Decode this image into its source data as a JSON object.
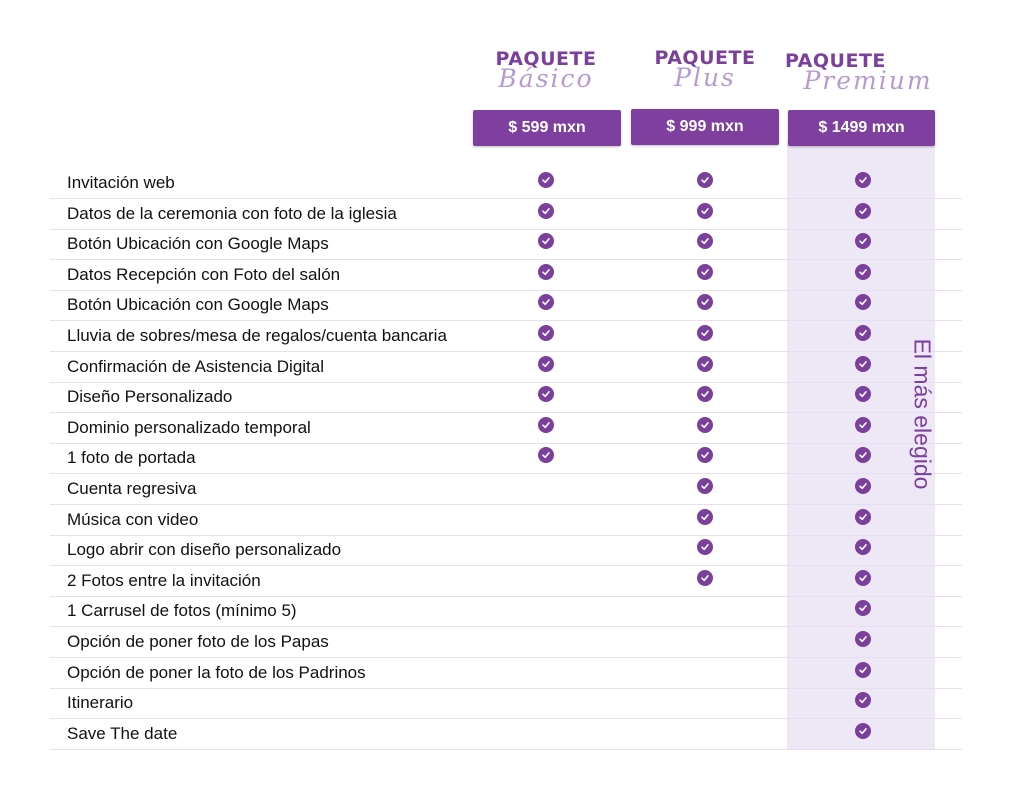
{
  "packages": [
    {
      "id": "basico",
      "title": "PAQUETE",
      "script": "Básico",
      "price": "$ 599 mxn"
    },
    {
      "id": "plus",
      "title": "PAQUETE",
      "script": "Plus",
      "price": "$ 999 mxn"
    },
    {
      "id": "premium",
      "title": "PAQUETE",
      "script": "Premium",
      "price": "$ 1499 mxn"
    }
  ],
  "badge": "El más elegido",
  "colors": {
    "accent": "#7b3f9c",
    "highlight": "#eee8f6",
    "divider": "#e6dff2"
  },
  "check_icon": "check-circle-icon",
  "features": [
    {
      "label": "Invitación web",
      "included": [
        true,
        true,
        true
      ]
    },
    {
      "label": "Datos de la ceremonia con foto de la iglesia",
      "included": [
        true,
        true,
        true
      ]
    },
    {
      "label": "Botón Ubicación con Google Maps",
      "included": [
        true,
        true,
        true
      ]
    },
    {
      "label": "Datos Recepción con Foto del salón",
      "included": [
        true,
        true,
        true
      ]
    },
    {
      "label": "Botón Ubicación con Google Maps",
      "included": [
        true,
        true,
        true
      ]
    },
    {
      "label": "Lluvia de sobres/mesa de regalos/cuenta bancaria",
      "included": [
        true,
        true,
        true
      ]
    },
    {
      "label": "Confirmación de Asistencia Digital",
      "included": [
        true,
        true,
        true
      ]
    },
    {
      "label": "Diseño Personalizado",
      "included": [
        true,
        true,
        true
      ]
    },
    {
      "label": "Dominio personalizado temporal",
      "included": [
        true,
        true,
        true
      ]
    },
    {
      "label": "1 foto de portada",
      "included": [
        true,
        true,
        true
      ]
    },
    {
      "label": "Cuenta regresiva",
      "included": [
        false,
        true,
        true
      ]
    },
    {
      "label": "Música con video",
      "included": [
        false,
        true,
        true
      ]
    },
    {
      "label": "Logo abrir con diseño personalizado",
      "included": [
        false,
        true,
        true
      ]
    },
    {
      "label": "2 Fotos entre la invitación",
      "included": [
        false,
        true,
        true
      ]
    },
    {
      "label": "1 Carrusel de fotos (mínimo 5)",
      "included": [
        false,
        false,
        true
      ]
    },
    {
      "label": "Opción de poner foto de los Papas",
      "included": [
        false,
        false,
        true
      ]
    },
    {
      "label": "Opción de poner la foto de los Padrinos",
      "included": [
        false,
        false,
        true
      ]
    },
    {
      "label": "Itinerario",
      "included": [
        false,
        false,
        true
      ]
    },
    {
      "label": "Save The date",
      "included": [
        false,
        false,
        true
      ]
    }
  ]
}
